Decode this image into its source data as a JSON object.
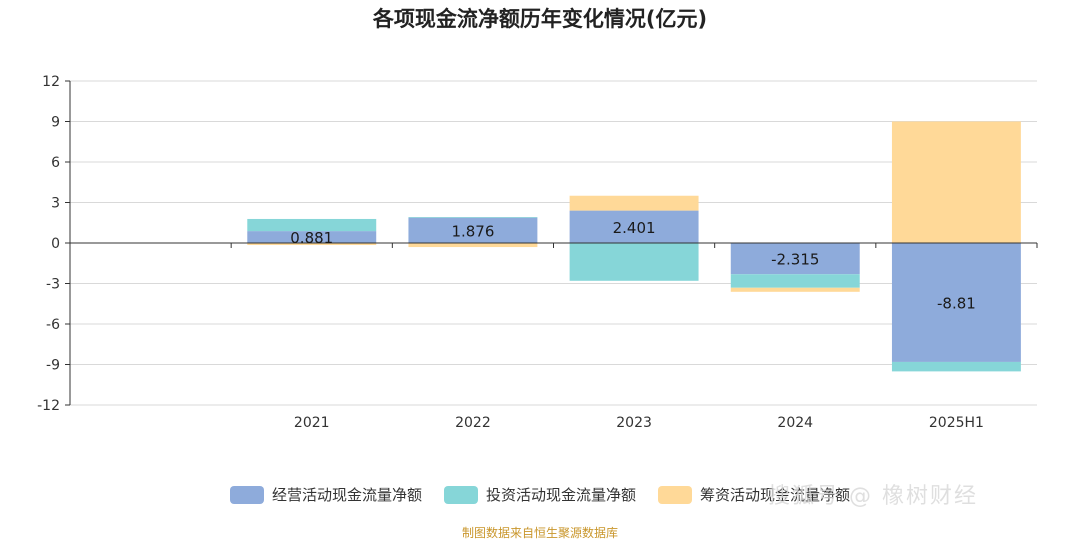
{
  "chart_data": {
    "type": "bar",
    "stacked": true,
    "title": "各项现金流净额历年变化情况(亿元)",
    "categories": [
      "2021",
      "2022",
      "2023",
      "2024",
      "2025H1"
    ],
    "ylim": [
      -12,
      12
    ],
    "yticks": [
      12,
      9,
      6,
      3,
      0,
      -3,
      -6,
      -9,
      -12
    ],
    "grid": true,
    "legend_position": "bottom",
    "series": [
      {
        "name": "经营活动现金流量净额",
        "color": "#8eabdb",
        "values": [
          0.881,
          1.876,
          2.401,
          -2.315,
          -8.81
        ]
      },
      {
        "name": "投资活动现金流量净额",
        "color": "#86d6d8",
        "values": [
          0.9,
          0.05,
          -2.8,
          -1.0,
          -0.7
        ]
      },
      {
        "name": "筹资活动现金流量净额",
        "color": "#ffd998",
        "values": [
          -0.15,
          -0.3,
          1.1,
          -0.3,
          9.0
        ]
      }
    ],
    "data_labels": [
      "0.881",
      "1.876",
      "2.401",
      "-2.315",
      "-8.81"
    ]
  },
  "source_note": "制图数据来自恒生聚源数据库",
  "watermark": "搜狐号 @ 橡树财经"
}
